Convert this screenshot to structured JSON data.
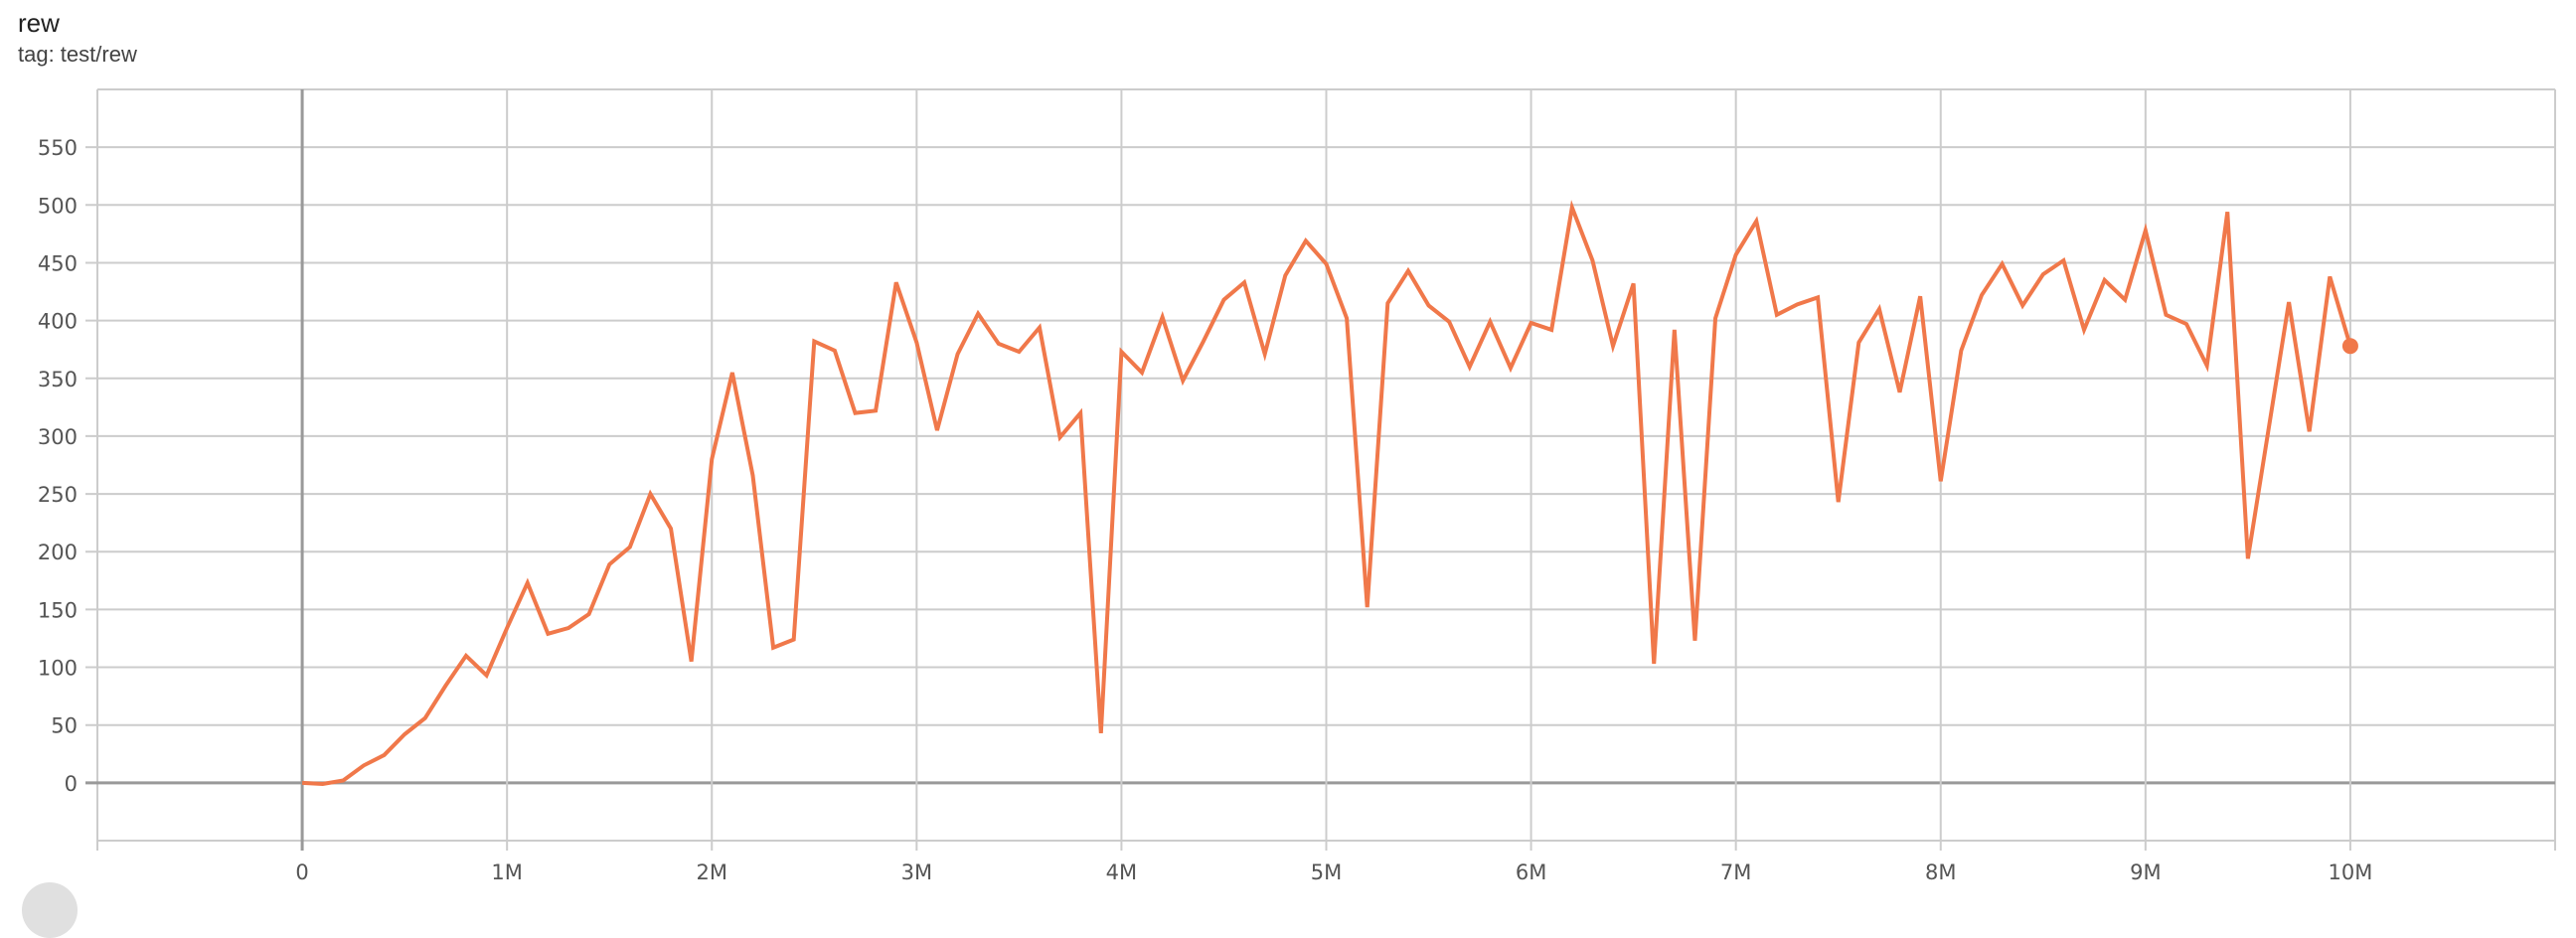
{
  "header": {
    "title": "rew",
    "tag": "tag: test/rew"
  },
  "chart_data": {
    "type": "line",
    "title": "rew",
    "subtitle": "tag: test/rew",
    "xlabel": "",
    "ylabel": "",
    "xlim": [
      -1000000,
      11000000
    ],
    "ylim": [
      -50,
      600
    ],
    "grid": true,
    "legend": "none",
    "x_ticks": [
      0,
      1000000,
      2000000,
      3000000,
      4000000,
      5000000,
      6000000,
      7000000,
      8000000,
      9000000,
      10000000
    ],
    "x_tick_labels": [
      "0",
      "1M",
      "2M",
      "3M",
      "4M",
      "5M",
      "6M",
      "7M",
      "8M",
      "9M",
      "10M"
    ],
    "y_ticks": [
      0,
      50,
      100,
      150,
      200,
      250,
      300,
      350,
      400,
      450,
      500,
      550
    ],
    "y_tick_labels": [
      "0",
      "50",
      "100",
      "150",
      "200",
      "250",
      "300",
      "350",
      "400",
      "450",
      "500",
      "550"
    ],
    "colors": {
      "line": "#f0784a",
      "grid": "#cccccc",
      "axis": "#999999"
    },
    "series": [
      {
        "x_start": 0,
        "x_step": 100000,
        "values": [
          0,
          -1,
          2,
          15,
          24,
          42,
          56,
          84,
          110,
          93,
          134,
          173,
          129,
          134,
          146,
          189,
          204,
          250,
          220,
          105,
          280,
          355,
          266,
          117,
          124,
          382,
          374,
          320,
          322,
          433,
          381,
          305,
          371,
          406,
          380,
          373,
          394,
          299,
          320,
          43,
          373,
          355,
          403,
          348,
          382,
          418,
          433,
          371,
          439,
          469,
          449,
          402,
          152,
          415,
          443,
          413,
          399,
          360,
          399,
          359,
          398,
          392,
          498,
          452,
          378,
          432,
          103,
          392,
          123,
          402,
          457,
          486,
          405,
          414,
          420,
          243,
          381,
          410,
          338,
          421,
          261,
          374,
          422,
          449,
          413,
          440,
          452,
          392,
          435,
          418,
          478,
          405,
          397,
          361,
          494,
          194,
          305,
          416,
          304,
          438,
          378
        ]
      }
    ]
  }
}
